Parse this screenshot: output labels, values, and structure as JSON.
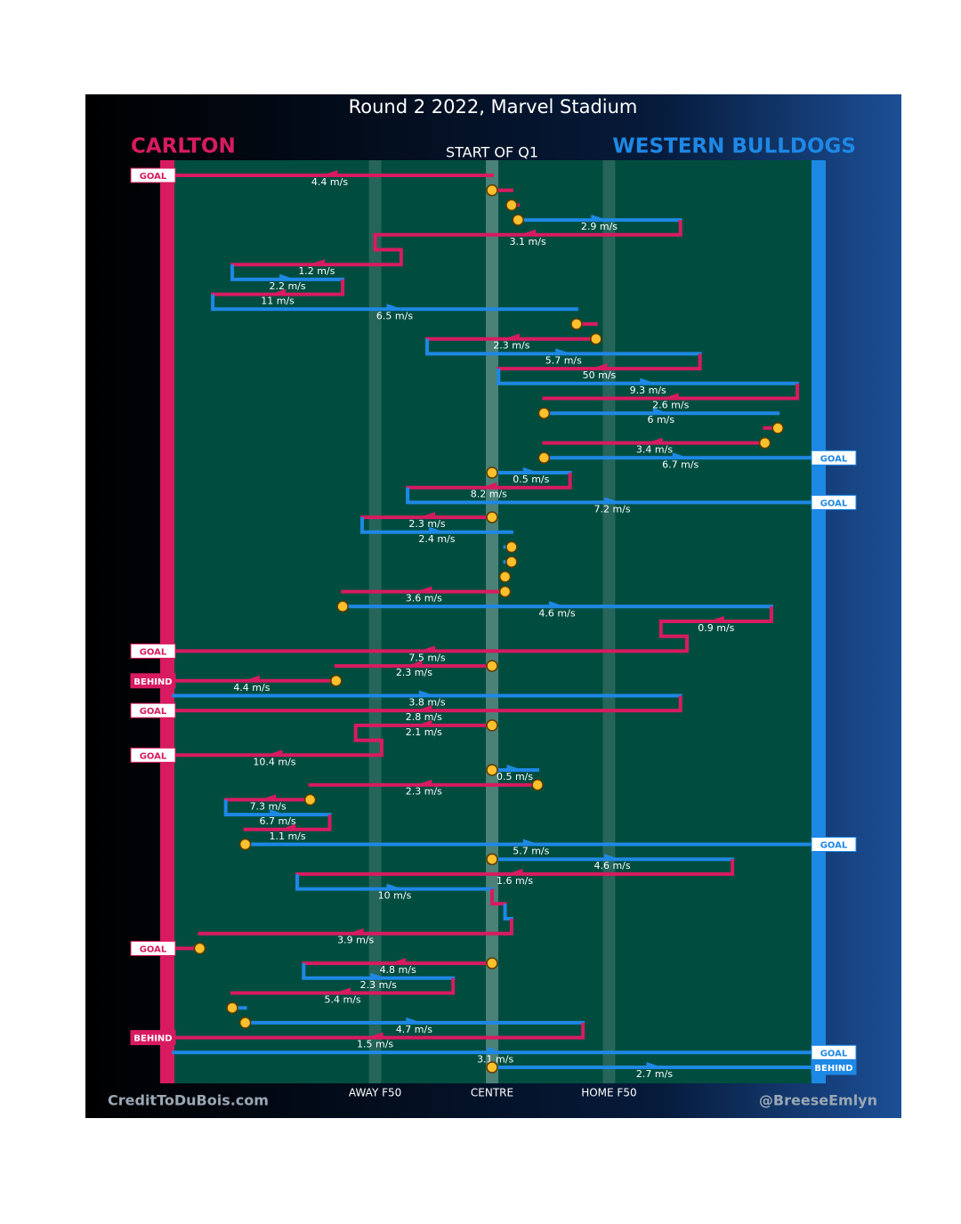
{
  "title": "Round 2 2022, Marvel Stadium",
  "period": "START OF Q1",
  "teams": [
    {
      "name": "CARLTON",
      "color": "#d81b60"
    },
    {
      "name": "WESTERN BULLDOGS",
      "color": "#1e88e5"
    }
  ],
  "zones": [
    {
      "label": "AWAY F50",
      "x": 32
    },
    {
      "label": "CENTRE",
      "x": 50
    },
    {
      "label": "HOME F50",
      "x": 68
    }
  ],
  "xlim": [
    0,
    100
  ],
  "credits": {
    "left": "CreditToDuBois.com",
    "right": "@BreeseEmlyn"
  },
  "moves": [
    {
      "team": "CARLTON",
      "from": 50,
      "to": 0,
      "speed": "4.4 m/s",
      "result": "GOAL"
    },
    {
      "team": "CARLTON",
      "from": 50,
      "to": 53,
      "stoppage": true
    },
    {
      "team": "CARLTON",
      "from": 53,
      "to": 54,
      "stoppage": true
    },
    {
      "team": "WESTERN BULLDOGS",
      "from": 54,
      "to": 79,
      "speed": "2.9 m/s",
      "stoppage": true
    },
    {
      "team": "CARLTON",
      "from": 79,
      "to": 32,
      "speed": "3.1 m/s"
    },
    {
      "team": "CARLTON",
      "from": 32,
      "to": 36
    },
    {
      "team": "CARLTON",
      "from": 36,
      "to": 10,
      "speed": "1.2 m/s"
    },
    {
      "team": "WESTERN BULLDOGS",
      "from": 10,
      "to": 27,
      "speed": "2.2 m/s"
    },
    {
      "team": "CARLTON",
      "from": 27,
      "to": 7,
      "speed": "11 m/s"
    },
    {
      "team": "WESTERN BULLDOGS",
      "from": 7,
      "to": 63,
      "speed": "6.5 m/s"
    },
    {
      "team": "CARLTON",
      "from": 63,
      "to": 66,
      "stoppage": true
    },
    {
      "team": "CARLTON",
      "from": 66,
      "to": 40,
      "speed": "2.3 m/s",
      "stoppage": true
    },
    {
      "team": "WESTERN BULLDOGS",
      "from": 40,
      "to": 82,
      "speed": "5.7 m/s"
    },
    {
      "team": "CARLTON",
      "from": 82,
      "to": 51,
      "speed": "50 m/s"
    },
    {
      "team": "WESTERN BULLDOGS",
      "from": 51,
      "to": 97,
      "speed": "9.3 m/s"
    },
    {
      "team": "CARLTON",
      "from": 97,
      "to": 58,
      "speed": "2.6 m/s"
    },
    {
      "team": "WESTERN BULLDOGS",
      "from": 58,
      "to": 94,
      "speed": "6 m/s",
      "stoppage": true
    },
    {
      "team": "CARLTON",
      "from": 94,
      "to": 92,
      "stoppage": true
    },
    {
      "team": "CARLTON",
      "from": 92,
      "to": 58,
      "speed": "3.4 m/s",
      "stoppage": true
    },
    {
      "team": "WESTERN BULLDOGS",
      "from": 58,
      "to": 100,
      "speed": "6.7 m/s",
      "result": "GOAL",
      "stoppage": true
    },
    {
      "team": "WESTERN BULLDOGS",
      "from": 50,
      "to": 62,
      "speed": "0.5 m/s",
      "stoppage": true
    },
    {
      "team": "CARLTON",
      "from": 62,
      "to": 37,
      "speed": "8.2 m/s"
    },
    {
      "team": "WESTERN BULLDOGS",
      "from": 37,
      "to": 100,
      "speed": "7.2 m/s",
      "result": "GOAL"
    },
    {
      "team": "CARLTON",
      "from": 50,
      "to": 30,
      "speed": "2.3 m/s",
      "stoppage": true
    },
    {
      "team": "WESTERN BULLDOGS",
      "from": 30,
      "to": 53,
      "speed": "2.4 m/s"
    },
    {
      "team": "WESTERN BULLDOGS",
      "from": 53,
      "to": 52,
      "stoppage": true
    },
    {
      "team": "WESTERN BULLDOGS",
      "from": 53,
      "to": 52,
      "stoppage": true
    },
    {
      "team": "WESTERN BULLDOGS",
      "from": 52,
      "to": 52,
      "stoppage": true
    },
    {
      "team": "CARLTON",
      "from": 52,
      "to": 27,
      "speed": "3.6 m/s",
      "stoppage": true
    },
    {
      "team": "WESTERN BULLDOGS",
      "from": 27,
      "to": 93,
      "speed": "4.6 m/s",
      "stoppage": true
    },
    {
      "team": "CARLTON",
      "from": 93,
      "to": 76,
      "speed": "0.9 m/s"
    },
    {
      "team": "CARLTON",
      "from": 76,
      "to": 80
    },
    {
      "team": "CARLTON",
      "from": 80,
      "to": 0,
      "speed": "7.5 m/s",
      "result": "GOAL"
    },
    {
      "team": "CARLTON",
      "from": 50,
      "to": 26,
      "speed": "2.3 m/s",
      "stoppage": true
    },
    {
      "team": "CARLTON",
      "from": 26,
      "to": 0,
      "speed": "4.4 m/s",
      "result": "BEHIND",
      "stoppage": true
    },
    {
      "team": "WESTERN BULLDOGS",
      "from": 1,
      "to": 79,
      "speed": "3.8 m/s"
    },
    {
      "team": "CARLTON",
      "from": 79,
      "to": 0,
      "speed": "2.8 m/s",
      "result": "GOAL"
    },
    {
      "team": "CARLTON",
      "from": 50,
      "to": 29,
      "speed": "2.1 m/s",
      "stoppage": true
    },
    {
      "team": "CARLTON",
      "from": 29,
      "to": 33
    },
    {
      "team": "CARLTON",
      "from": 33,
      "to": 0,
      "speed": "10.4 m/s",
      "result": "GOAL"
    },
    {
      "team": "WESTERN BULLDOGS",
      "from": 50,
      "to": 57,
      "speed": "0.5 m/s",
      "stoppage": true
    },
    {
      "team": "CARLTON",
      "from": 57,
      "to": 22,
      "speed": "2.3 m/s",
      "stoppage": true
    },
    {
      "team": "CARLTON",
      "from": 22,
      "to": 9,
      "speed": "7.3 m/s",
      "stoppage": true
    },
    {
      "team": "WESTERN BULLDOGS",
      "from": 9,
      "to": 25,
      "speed": "6.7 m/s"
    },
    {
      "team": "CARLTON",
      "from": 25,
      "to": 12,
      "speed": "1.1 m/s"
    },
    {
      "team": "WESTERN BULLDOGS",
      "from": 12,
      "to": 100,
      "speed": "5.7 m/s",
      "result": "GOAL",
      "stoppage": true
    },
    {
      "team": "WESTERN BULLDOGS",
      "from": 50,
      "to": 87,
      "speed": "4.6 m/s",
      "stoppage": true
    },
    {
      "team": "CARLTON",
      "from": 87,
      "to": 20,
      "speed": "1.6 m/s"
    },
    {
      "team": "WESTERN BULLDOGS",
      "from": 20,
      "to": 50,
      "speed": "10 m/s"
    },
    {
      "team": "CARLTON",
      "from": 50,
      "to": 52
    },
    {
      "team": "WESTERN BULLDOGS",
      "from": 52,
      "to": 53
    },
    {
      "team": "CARLTON",
      "from": 53,
      "to": 5,
      "speed": "3.9 m/s"
    },
    {
      "team": "CARLTON",
      "from": 5,
      "to": 0,
      "result": "GOAL",
      "stoppage": true
    },
    {
      "team": "CARLTON",
      "from": 50,
      "to": 21,
      "speed": "4.8 m/s",
      "stoppage": true
    },
    {
      "team": "WESTERN BULLDOGS",
      "from": 21,
      "to": 44,
      "speed": "2.3 m/s"
    },
    {
      "team": "CARLTON",
      "from": 44,
      "to": 10,
      "speed": "5.4 m/s"
    },
    {
      "team": "WESTERN BULLDOGS",
      "from": 10,
      "to": 12,
      "stoppage": true
    },
    {
      "team": "WESTERN BULLDOGS",
      "from": 12,
      "to": 64,
      "speed": "4.7 m/s",
      "stoppage": true
    },
    {
      "team": "CARLTON",
      "from": 64,
      "to": 0,
      "speed": "1.5 m/s",
      "result": "BEHIND"
    },
    {
      "team": "WESTERN BULLDOGS",
      "from": 1,
      "to": 100,
      "speed": "3.1 m/s",
      "result": "GOAL"
    },
    {
      "team": "WESTERN BULLDOGS",
      "from": 50,
      "to": 100,
      "speed": "2.7 m/s",
      "result": "BEHIND",
      "stoppage": true
    }
  ]
}
